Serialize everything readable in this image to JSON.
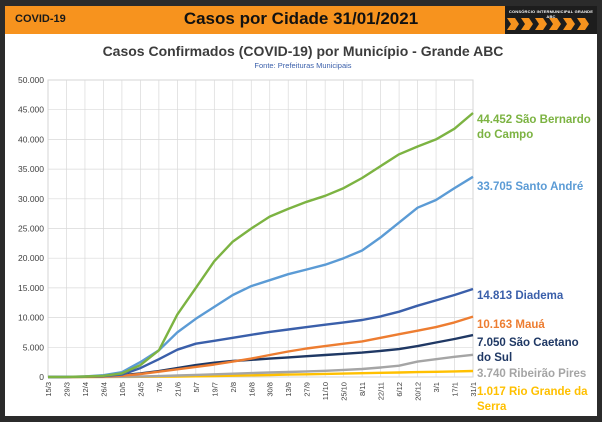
{
  "header": {
    "left_label": "COVID-19",
    "title": "Casos por Cidade 31/01/2021",
    "brand_text": "CONSÓRCIO INTERMUNICIPAL GRANDE ABC"
  },
  "colors": {
    "header": "#f7931e",
    "sao_bernardo": "#7cb342",
    "santo_andre": "#5b9bd5",
    "diadema": "#3a5faa",
    "maua": "#ed7d31",
    "sao_caetano": "#1f3864",
    "ribeirao_pires": "#a5a5a5",
    "rio_grande": "#ffc000"
  },
  "chart_data": {
    "type": "line",
    "title": "Casos Confirmados (COVID-19) por Município - Grande ABC",
    "subtitle": "Fonte: Prefeituras Municipais",
    "xlabel": "",
    "ylabel": "",
    "ylim": [
      0,
      50000
    ],
    "yticks": [
      "0",
      "5.000",
      "10.000",
      "15.000",
      "20.000",
      "25.000",
      "30.000",
      "35.000",
      "40.000",
      "45.000",
      "50.000"
    ],
    "x": [
      "15/3",
      "29/3",
      "12/4",
      "26/4",
      "10/5",
      "24/5",
      "7/6",
      "21/6",
      "5/7",
      "19/7",
      "2/8",
      "16/8",
      "30/8",
      "13/9",
      "27/9",
      "11/10",
      "25/10",
      "8/11",
      "22/11",
      "6/12",
      "20/12",
      "3/1",
      "17/1",
      "31/1"
    ],
    "grid": true,
    "legend": "right-end-labels",
    "series": [
      {
        "name": "São Bernardo do Campo",
        "last_label": "44.452",
        "color_key": "sao_bernardo",
        "values": [
          0,
          20,
          80,
          200,
          600,
          2000,
          4500,
          10500,
          15000,
          19500,
          22800,
          25000,
          27000,
          28300,
          29500,
          30500,
          31800,
          33500,
          35500,
          37500,
          38800,
          40000,
          41800,
          44452
        ]
      },
      {
        "name": "Santo André",
        "last_label": "33.705",
        "color_key": "santo_andre",
        "values": [
          0,
          30,
          100,
          300,
          800,
          2500,
          4500,
          7500,
          9800,
          11800,
          13800,
          15300,
          16300,
          17300,
          18100,
          18900,
          20000,
          21300,
          23500,
          26000,
          28500,
          29800,
          31800,
          33705
        ]
      },
      {
        "name": "Diadema",
        "last_label": "14.813",
        "color_key": "diadema",
        "values": [
          0,
          20,
          60,
          150,
          400,
          1500,
          3000,
          4600,
          5600,
          6100,
          6600,
          7100,
          7600,
          8000,
          8400,
          8800,
          9200,
          9600,
          10200,
          11000,
          12000,
          12900,
          13800,
          14813
        ]
      },
      {
        "name": "Mauá",
        "last_label": "10.163",
        "color_key": "maua",
        "values": [
          0,
          10,
          30,
          80,
          200,
          500,
          900,
          1300,
          1700,
          2100,
          2600,
          3100,
          3700,
          4300,
          4800,
          5200,
          5600,
          6000,
          6600,
          7200,
          7800,
          8400,
          9200,
          10163
        ]
      },
      {
        "name": "São Caetano do Sul",
        "last_label": "7.050",
        "color_key": "sao_caetano",
        "values": [
          0,
          10,
          40,
          100,
          300,
          600,
          1000,
          1500,
          2000,
          2400,
          2700,
          2900,
          3100,
          3300,
          3500,
          3700,
          3900,
          4100,
          4400,
          4700,
          5200,
          5800,
          6400,
          7050
        ]
      },
      {
        "name": "Ribeirão Pires",
        "last_label": "3.740",
        "color_key": "ribeirao_pires",
        "values": [
          0,
          5,
          10,
          20,
          40,
          80,
          150,
          250,
          350,
          450,
          550,
          650,
          750,
          850,
          950,
          1050,
          1200,
          1350,
          1600,
          1900,
          2600,
          3000,
          3400,
          3740
        ]
      },
      {
        "name": "Rio Grande da Serra",
        "last_label": "1.017",
        "color_key": "rio_grande",
        "values": [
          0,
          2,
          5,
          10,
          15,
          30,
          50,
          80,
          120,
          170,
          220,
          280,
          340,
          400,
          460,
          520,
          580,
          640,
          700,
          760,
          820,
          880,
          950,
          1017
        ]
      }
    ],
    "end_labels": [
      {
        "lines": [
          "44.452 São Bernardo",
          "do Campo"
        ],
        "color_key": "sao_bernardo"
      },
      {
        "lines": [
          "33.705 Santo André"
        ],
        "color_key": "santo_andre"
      },
      {
        "lines": [
          "14.813 Diadema"
        ],
        "color_key": "diadema"
      },
      {
        "lines": [
          "10.163 Mauá"
        ],
        "color_key": "maua"
      },
      {
        "lines": [
          "7.050 São Caetano",
          "do Sul"
        ],
        "color_key": "sao_caetano"
      },
      {
        "lines": [
          "3.740 Ribeirão Pires"
        ],
        "color_key": "ribeirao_pires"
      },
      {
        "lines": [
          "1.017 Rio Grande da",
          "Serra"
        ],
        "color_key": "rio_grande"
      }
    ]
  }
}
